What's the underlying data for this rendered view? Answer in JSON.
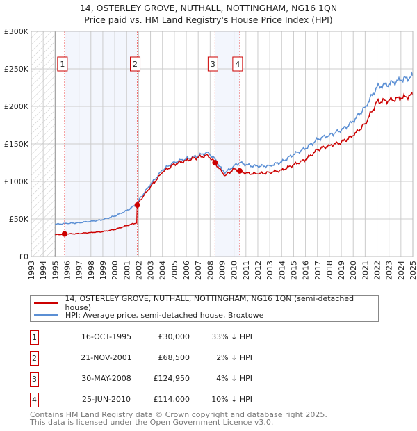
{
  "title_line1": "14, OSTERLEY GROVE, NUTHALL, NOTTINGHAM, NG16 1QN",
  "title_line2": "Price paid vs. HM Land Registry's House Price Index (HPI)",
  "colors": {
    "property": "#cc0000",
    "hpi": "#5b8fd4",
    "shade": "#f3f6fd",
    "grid": "#cccccc"
  },
  "chart_data": {
    "type": "line",
    "xlim": [
      1993,
      2025
    ],
    "ylim": [
      0,
      300000
    ],
    "yticks": [
      0,
      50000,
      100000,
      150000,
      200000,
      250000,
      300000
    ],
    "ytick_labels": [
      "£0",
      "£50K",
      "£100K",
      "£150K",
      "£200K",
      "£250K",
      "£300K"
    ],
    "xticks": [
      "1993",
      "1994",
      "1995",
      "1996",
      "1997",
      "1998",
      "1999",
      "2000",
      "2001",
      "2002",
      "2003",
      "2004",
      "2005",
      "2006",
      "2007",
      "2008",
      "2009",
      "2010",
      "2011",
      "2012",
      "2013",
      "2014",
      "2015",
      "2016",
      "2017",
      "2018",
      "2019",
      "2020",
      "2021",
      "2022",
      "2023",
      "2024",
      "2025"
    ],
    "hatched_range": [
      1993,
      1995
    ],
    "series": [
      {
        "name": "14, OSTERLEY GROVE, NUTHALL, NOTTINGHAM, NG16 1QN (semi-detached house)",
        "x": [
          1995,
          1996,
          1997,
          1998,
          1999,
          2000,
          2001,
          2001.85,
          2001.89,
          2002,
          2003,
          2004,
          2005,
          2006,
          2007,
          2007.8,
          2008.41,
          2009,
          2009.3,
          2010,
          2010.48,
          2011,
          2012,
          2013,
          2014,
          2015,
          2016,
          2017,
          2018,
          2019,
          2020,
          2021,
          2022,
          2023,
          2024,
          2025
        ],
        "y": [
          29000,
          30000,
          30500,
          32000,
          33000,
          36000,
          41000,
          45000,
          68500,
          72000,
          93000,
          112000,
          123000,
          128000,
          132000,
          135000,
          124950,
          112000,
          108000,
          117000,
          114000,
          111000,
          110000,
          112000,
          115000,
          122000,
          129000,
          142000,
          148000,
          152000,
          161000,
          177000,
          206000,
          208000,
          211000,
          215000
        ]
      },
      {
        "name": "HPI: Average price, semi-detached house, Broxtowe",
        "x": [
          1995,
          1996,
          1997,
          1998,
          1999,
          2000,
          2001,
          2001.89,
          2002,
          2003,
          2004,
          2005,
          2006,
          2007,
          2007.8,
          2008.41,
          2009,
          2009.3,
          2010,
          2010.48,
          2011,
          2012,
          2013,
          2014,
          2015,
          2016,
          2017,
          2018,
          2019,
          2020,
          2021,
          2022,
          2023,
          2024,
          2025
        ],
        "y": [
          43000,
          44000,
          45000,
          47000,
          49000,
          54000,
          61000,
          70000,
          75000,
          96000,
          115000,
          126000,
          130000,
          134000,
          139000,
          130000,
          115000,
          112000,
          121000,
          125000,
          122000,
          120000,
          121000,
          126000,
          136000,
          144000,
          156000,
          162000,
          168000,
          180000,
          199000,
          226000,
          230000,
          235000,
          240000
        ]
      }
    ]
  },
  "legend": {
    "property_label": "14, OSTERLEY GROVE, NUTHALL, NOTTINGHAM, NG16 1QN (semi-detached house)",
    "hpi_label": "HPI: Average price, semi-detached house, Broxtowe"
  },
  "sales": [
    {
      "num": "1",
      "date": "16-OCT-1995",
      "price": "£30,000",
      "pct": "33% ↓ HPI",
      "year": 1995.79,
      "value": 30000
    },
    {
      "num": "2",
      "date": "21-NOV-2001",
      "price": "£68,500",
      "pct": "2% ↓ HPI",
      "year": 2001.89,
      "value": 68500
    },
    {
      "num": "3",
      "date": "30-MAY-2008",
      "price": "£124,950",
      "pct": "4% ↓ HPI",
      "year": 2008.41,
      "value": 124950
    },
    {
      "num": "4",
      "date": "25-JUN-2010",
      "price": "£114,000",
      "pct": "10% ↓ HPI",
      "year": 2010.48,
      "value": 114000
    }
  ],
  "footer": {
    "line1": "Contains HM Land Registry data © Crown copyright and database right 2025.",
    "line2": "This data is licensed under the Open Government Licence v3.0."
  }
}
